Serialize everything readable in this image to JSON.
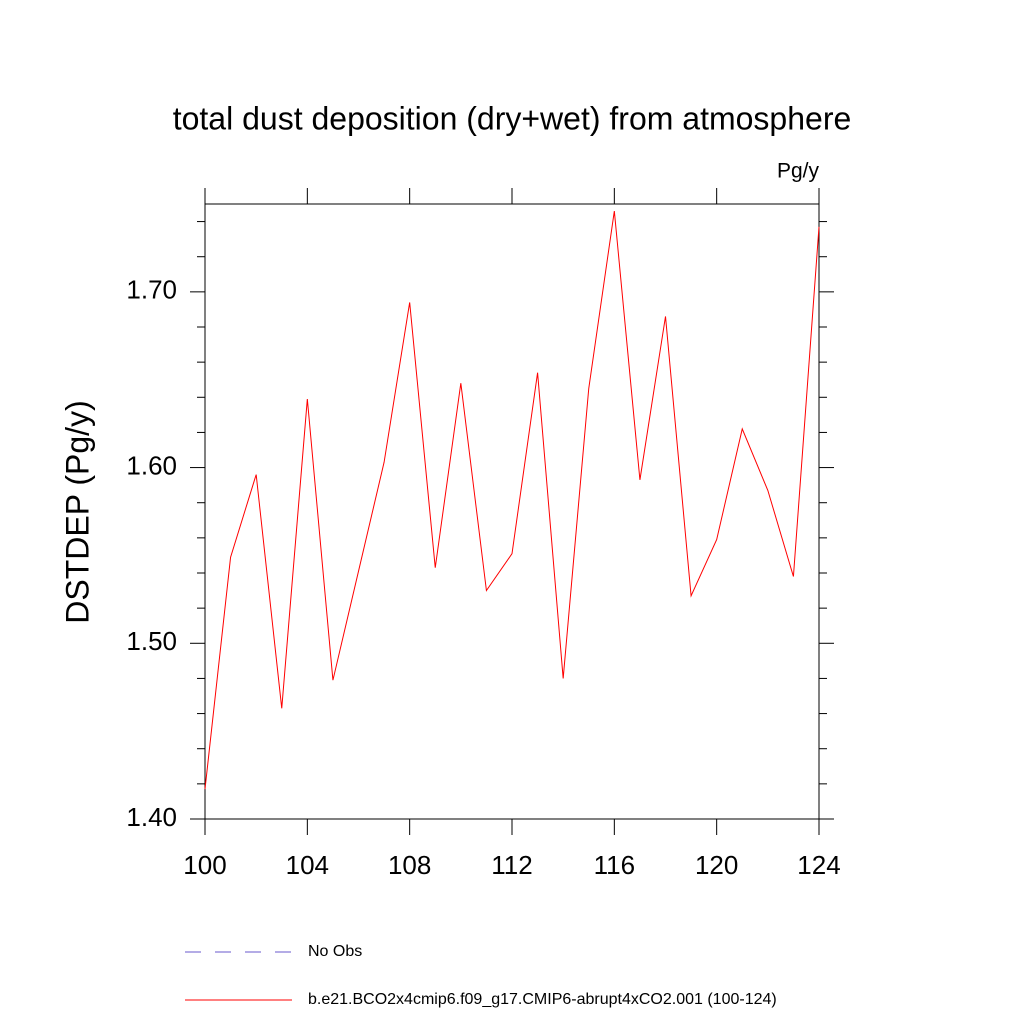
{
  "chart_data": {
    "type": "line",
    "title": "total dust deposition (dry+wet) from atmosphere",
    "units_label": "Pg/y",
    "y_label": "DSTDEP  (Pg/y)",
    "x": [
      100,
      101,
      102,
      103,
      104,
      105,
      106,
      107,
      108,
      109,
      110,
      111,
      112,
      113,
      114,
      115,
      116,
      117,
      118,
      119,
      120,
      121,
      122,
      123,
      124
    ],
    "series": [
      {
        "name": "b.e21.BCO2x4cmip6.f09_g17.CMIP6-abrupt4xCO2.001 (100-124)",
        "color": "#ff0000",
        "values": [
          1.417,
          1.549,
          1.596,
          1.463,
          1.639,
          1.479,
          1.541,
          1.603,
          1.694,
          1.543,
          1.648,
          1.53,
          1.551,
          1.654,
          1.48,
          1.645,
          1.746,
          1.593,
          1.686,
          1.527,
          1.559,
          1.622,
          1.587,
          1.538,
          1.737
        ]
      }
    ],
    "legend_extra": [
      {
        "name": "No Obs",
        "color": "#6a5acd",
        "dashed": true
      }
    ],
    "xlim": [
      100,
      124
    ],
    "xticks": [
      100,
      104,
      108,
      112,
      116,
      120,
      124
    ],
    "ylim": [
      1.4,
      1.75
    ],
    "yticks": [
      {
        "value": 1.4,
        "label": "1.40"
      },
      {
        "value": 1.5,
        "label": "1.50"
      },
      {
        "value": 1.6,
        "label": "1.60"
      },
      {
        "value": 1.7,
        "label": "1.70"
      }
    ],
    "yminorticks": [
      1.42,
      1.44,
      1.46,
      1.48,
      1.52,
      1.54,
      1.56,
      1.58,
      1.62,
      1.64,
      1.66,
      1.68,
      1.72,
      1.74
    ]
  }
}
